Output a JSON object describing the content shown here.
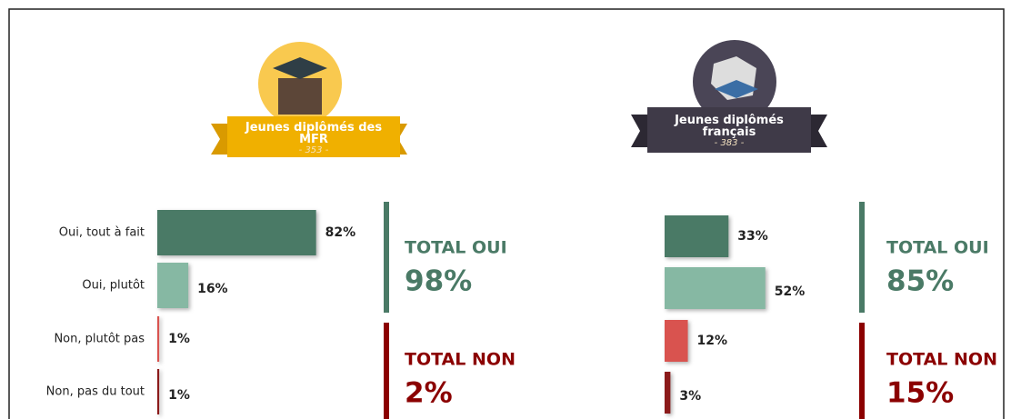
{
  "chart_data": [
    {
      "type": "bar",
      "title": "Jeunes diplômés des MFR",
      "subtitle": "- 353 -",
      "categories": [
        "Oui, tout à fait",
        "Oui, plutôt",
        "Non, plutôt pas",
        "Non, pas du tout"
      ],
      "values": [
        82,
        16,
        1,
        1
      ],
      "value_labels": [
        "82%",
        "16%",
        "1%",
        "1%"
      ],
      "colors": [
        "#4a7a66",
        "#86b8a3",
        "#d9534f",
        "#8b1a1a"
      ],
      "total_yes_label": "TOTAL OUI",
      "total_yes": "98%",
      "total_no_label": "TOTAL NON",
      "total_no": "2%"
    },
    {
      "type": "bar",
      "title": "Jeunes diplômés français",
      "subtitle": "- 383 -",
      "categories": [
        null,
        null,
        null,
        null
      ],
      "values": [
        33,
        52,
        12,
        3
      ],
      "value_labels": [
        "33%",
        "52%",
        "12%",
        "3%"
      ],
      "colors": [
        "#4a7a66",
        "#86b8a3",
        "#d9534f",
        "#8b1a1a"
      ],
      "total_yes_label": "TOTAL OUI",
      "total_yes": "85%",
      "total_no_label": "TOTAL NON",
      "total_no": "15%"
    }
  ]
}
